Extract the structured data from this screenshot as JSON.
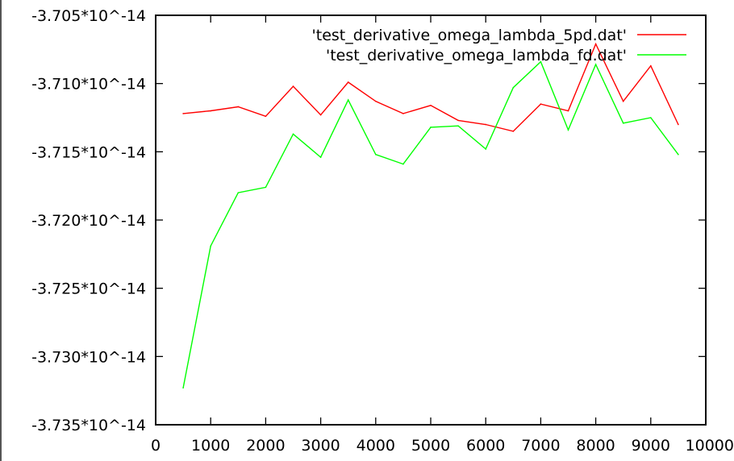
{
  "chart_data": {
    "type": "line",
    "title": "",
    "xlabel": "",
    "ylabel": "",
    "xlim": [
      0,
      10000
    ],
    "ylim": [
      -3.735,
      -3.705
    ],
    "x_ticks": [
      0,
      1000,
      2000,
      3000,
      4000,
      5000,
      6000,
      7000,
      8000,
      9000,
      10000
    ],
    "x_tick_labels": [
      "0",
      "1000",
      "2000",
      "3000",
      "4000",
      "5000",
      "6000",
      "7000",
      "8000",
      "9000",
      "10000"
    ],
    "y_ticks": [
      -3.705,
      -3.71,
      -3.715,
      -3.72,
      -3.725,
      -3.73,
      -3.735
    ],
    "y_tick_labels": [
      "-3.705*10^-14",
      "-3.710*10^-14",
      "-3.715*10^-14",
      "-3.720*10^-14",
      "-3.725*10^-14",
      "-3.730*10^-14",
      "-3.735*10^-14"
    ],
    "y_scale_note": "values in units of 10^-14",
    "grid": false,
    "legend_position": "top-right",
    "x": [
      500,
      1000,
      1500,
      2000,
      2500,
      3000,
      3500,
      4000,
      4500,
      5000,
      5500,
      6000,
      6500,
      7000,
      7500,
      8000,
      8500,
      9000,
      9500
    ],
    "series": [
      {
        "name": "'test_derivative_omega_lambda_5pd.dat'",
        "color": "#ff0000",
        "values": [
          -3.7122,
          -3.712,
          -3.7117,
          -3.7124,
          -3.7102,
          -3.7123,
          -3.7099,
          -3.7113,
          -3.7122,
          -3.7116,
          -3.7127,
          -3.713,
          -3.7135,
          -3.7115,
          -3.712,
          -3.7071,
          -3.7113,
          -3.7087,
          -3.713
        ]
      },
      {
        "name": "'test_derivative_omega_lambda_fd.dat'",
        "color": "#00ff00",
        "values": [
          -3.7323,
          -3.7219,
          -3.718,
          -3.7176,
          -3.7137,
          -3.7154,
          -3.7112,
          -3.7152,
          -3.7159,
          -3.7132,
          -3.7131,
          -3.7148,
          -3.7103,
          -3.7084,
          -3.7134,
          -3.7086,
          -3.7129,
          -3.7125,
          -3.7152
        ]
      }
    ]
  }
}
